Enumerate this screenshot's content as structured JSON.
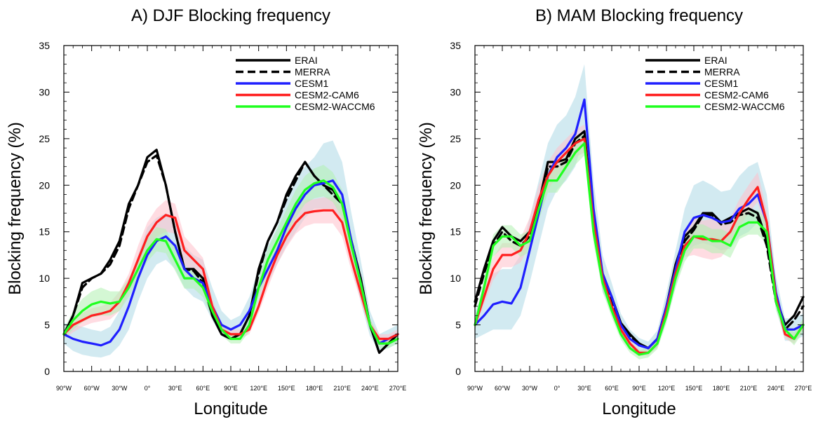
{
  "colors": {
    "erai": "#000000",
    "merra": "#000000",
    "cesm1": "#1f1fff",
    "cam6": "#ff1f1f",
    "waccm6": "#1fff1f",
    "cesm1_band": "#add8e6",
    "cam6_band": "#ffc0cb",
    "waccm6_band": "#b0f0b0"
  },
  "chart_data": [
    {
      "type": "line",
      "title": "A) DJF Blocking frequency",
      "xlabel": "Longitude",
      "ylabel": "Blocking frequency (%)",
      "xlim": [
        -90,
        270
      ],
      "ylim": [
        0,
        35
      ],
      "xticks": [
        -90,
        -60,
        -30,
        0,
        30,
        60,
        90,
        120,
        150,
        180,
        210,
        240,
        270
      ],
      "xtick_labels": [
        "90°W",
        "60°W",
        "30°W",
        "0°",
        "30°E",
        "60°E",
        "90°E",
        "120°E",
        "150°E",
        "180°E",
        "210°E",
        "240°E",
        "270°E"
      ],
      "yticks": [
        0,
        5,
        10,
        15,
        20,
        25,
        30,
        35
      ],
      "ytick_labels": [
        "0",
        "5",
        "10",
        "15",
        "20",
        "25",
        "30",
        "35"
      ],
      "legend": "top-right",
      "x": [
        -90,
        -80,
        -70,
        -60,
        -50,
        -40,
        -30,
        -20,
        -10,
        0,
        10,
        20,
        30,
        40,
        50,
        60,
        70,
        80,
        90,
        100,
        110,
        120,
        130,
        140,
        150,
        160,
        170,
        180,
        190,
        200,
        210,
        220,
        230,
        240,
        250,
        260,
        270
      ],
      "series": [
        {
          "name": "ERAI",
          "key": "erai",
          "dash": "solid",
          "values": [
            4,
            6,
            9.5,
            10,
            10.5,
            12,
            14,
            18,
            20,
            23,
            23.8,
            20,
            15,
            11,
            11,
            10,
            6,
            4,
            3.5,
            4,
            6,
            11,
            14,
            16,
            19,
            21,
            22.5,
            21,
            20,
            19.5,
            18,
            14,
            10,
            5,
            2,
            3,
            4
          ]
        },
        {
          "name": "MERRA",
          "key": "merra",
          "dash": "dashed",
          "values": [
            4,
            6,
            9,
            10,
            10.5,
            11.5,
            13.5,
            17.5,
            20,
            22.5,
            23.2,
            20,
            15,
            11,
            10.8,
            9.5,
            6,
            4,
            3.5,
            4,
            6,
            10.5,
            14,
            16,
            18.5,
            20.5,
            22.5,
            21,
            20,
            19,
            18,
            14,
            10,
            5,
            2,
            3,
            4
          ]
        },
        {
          "name": "CESM1",
          "key": "cesm1",
          "dash": "solid",
          "values": [
            4,
            3.5,
            3.2,
            3,
            2.8,
            3.2,
            4.5,
            7,
            10,
            12.5,
            14,
            14.5,
            13.5,
            11,
            10,
            9.5,
            7,
            5,
            4.5,
            5,
            6.5,
            9,
            11,
            13,
            15.5,
            17.5,
            19,
            20,
            20.2,
            20.5,
            19,
            14,
            9.5,
            5,
            3,
            3.5,
            4
          ]
        },
        {
          "name": "CESM2-CAM6",
          "key": "cam6",
          "dash": "solid",
          "values": [
            4,
            5,
            5.5,
            6,
            6.2,
            6.5,
            7.5,
            9.5,
            12,
            14.5,
            16,
            16.8,
            16.5,
            13,
            12,
            11,
            7,
            4.5,
            4,
            4,
            4.5,
            7,
            10,
            12.5,
            14.5,
            16,
            17,
            17.2,
            17.3,
            17.3,
            16,
            12,
            8.5,
            5,
            3.5,
            3.5,
            4
          ]
        },
        {
          "name": "CESM2-WACCM6",
          "key": "waccm6",
          "dash": "solid",
          "values": [
            4,
            5.5,
            6.5,
            7.2,
            7.5,
            7.3,
            7.5,
            9,
            11,
            13,
            14.2,
            14,
            12,
            10,
            10,
            9,
            6.5,
            4.5,
            3.5,
            3.5,
            5,
            9,
            12,
            14,
            16,
            18,
            19.5,
            20.2,
            20.5,
            19.8,
            18,
            13.5,
            9.5,
            5,
            3,
            3,
            3.5
          ]
        }
      ],
      "bands": [
        {
          "key": "cesm1",
          "lower": [
            3,
            2.2,
            1.8,
            1.6,
            1.5,
            1.8,
            2.8,
            4.5,
            7.5,
            10,
            11.5,
            12,
            11,
            9,
            8,
            7.5,
            5.5,
            3.8,
            3.5,
            4,
            5.2,
            7.5,
            9.5,
            11.5,
            13.5,
            15,
            16.5,
            17.5,
            17.5,
            17.5,
            16,
            11.5,
            7.5,
            3.8,
            2.2,
            2.5,
            3
          ],
          "upper": [
            5.2,
            5,
            4.8,
            4.5,
            4.3,
            4.8,
            6.5,
            9.5,
            12.5,
            15.5,
            16.5,
            17,
            16,
            13.5,
            12.5,
            12,
            9,
            6.5,
            5.5,
            6,
            8,
            11,
            13.5,
            15.5,
            18.5,
            20.5,
            22,
            23,
            24.5,
            24.8,
            22.5,
            17,
            12,
            6.5,
            4,
            4.5,
            5
          ]
        },
        {
          "key": "cam6",
          "lower": [
            3.5,
            4.2,
            4.8,
            5.2,
            5.4,
            5.6,
            6.5,
            8.5,
            10.5,
            13,
            14.5,
            15,
            14.8,
            11.5,
            10.5,
            9.8,
            6.2,
            4,
            3.5,
            3.5,
            4,
            6.3,
            9,
            11.5,
            13.3,
            14.8,
            15.6,
            15.9,
            15.9,
            15.9,
            14.5,
            10.8,
            7.6,
            4.4,
            3,
            3,
            3.5
          ],
          "upper": [
            4.5,
            5.8,
            6.3,
            6.8,
            7,
            7.4,
            8.6,
            10.5,
            13.5,
            16,
            17.5,
            18.4,
            18,
            14.5,
            13.4,
            12.2,
            7.8,
            5,
            4.5,
            4.5,
            5,
            7.7,
            11,
            13.5,
            15.7,
            17.2,
            18.4,
            18.5,
            18.7,
            18.7,
            17.5,
            13.2,
            9.4,
            5.6,
            4,
            4,
            4.5
          ]
        },
        {
          "key": "waccm6",
          "lower": [
            3.5,
            4.5,
            5.3,
            5.8,
            6,
            6,
            6.5,
            8,
            10,
            11.8,
            12.9,
            12.7,
            10.8,
            8.9,
            8.9,
            8,
            5.7,
            3.9,
            3,
            3,
            4.3,
            8,
            10.8,
            12.7,
            14.6,
            16.5,
            18,
            18.6,
            18.8,
            18.2,
            16.5,
            12.2,
            8.4,
            4.3,
            2.5,
            2.5,
            3
          ],
          "upper": [
            4.5,
            6.5,
            7.8,
            8.6,
            9,
            8.6,
            8.6,
            10,
            12,
            14.2,
            15.5,
            15.3,
            13.2,
            11.1,
            11.1,
            10,
            7.3,
            5.1,
            4,
            4,
            5.7,
            10,
            13.2,
            15.3,
            17.4,
            19.5,
            21,
            21.8,
            22.2,
            21.4,
            19.5,
            14.8,
            10.6,
            5.7,
            3.5,
            3.5,
            4
          ]
        }
      ]
    },
    {
      "type": "line",
      "title": "B) MAM Blocking frequency",
      "xlabel": "Longitude",
      "ylabel": "Blocking frequency (%)",
      "xlim": [
        -90,
        270
      ],
      "ylim": [
        0,
        35
      ],
      "xticks": [
        -90,
        -60,
        -30,
        0,
        30,
        60,
        90,
        120,
        150,
        180,
        210,
        240,
        270
      ],
      "xtick_labels": [
        "90°W",
        "60°W",
        "30°W",
        "0°",
        "30°E",
        "60°E",
        "90°E",
        "120°E",
        "150°E",
        "180°E",
        "210°E",
        "240°E",
        "270°E"
      ],
      "yticks": [
        0,
        5,
        10,
        15,
        20,
        25,
        30,
        35
      ],
      "ytick_labels": [
        "0",
        "5",
        "10",
        "15",
        "20",
        "25",
        "30",
        "35"
      ],
      "legend": "top-right",
      "x": [
        -90,
        -80,
        -70,
        -60,
        -50,
        -40,
        -30,
        -20,
        -10,
        0,
        10,
        20,
        30,
        40,
        50,
        60,
        70,
        80,
        90,
        100,
        110,
        120,
        130,
        140,
        150,
        160,
        170,
        180,
        190,
        200,
        210,
        220,
        230,
        240,
        250,
        260,
        270
      ],
      "series": [
        {
          "name": "ERAI",
          "key": "erai",
          "dash": "solid",
          "values": [
            7.5,
            11,
            14,
            15.5,
            14.5,
            14,
            15,
            18,
            22.5,
            22.5,
            22.8,
            25,
            25.8,
            16,
            10.5,
            8,
            5.2,
            4,
            3,
            2.5,
            3.5,
            7,
            11.5,
            14.5,
            15.5,
            17,
            17,
            16,
            16.5,
            17,
            17.5,
            17,
            14,
            8,
            5,
            6,
            8
          ]
        },
        {
          "name": "MERRA",
          "key": "merra",
          "dash": "dashed",
          "values": [
            7,
            10.5,
            13.5,
            15,
            14,
            13.5,
            14.5,
            17,
            22,
            22,
            22.5,
            24.5,
            25.3,
            15.5,
            10,
            7.5,
            5,
            3.8,
            3,
            2.5,
            3.5,
            7,
            11,
            14,
            15.2,
            16.8,
            16.8,
            15.8,
            16,
            16.8,
            17,
            16.5,
            13.5,
            7.5,
            4.5,
            5.5,
            7
          ]
        },
        {
          "name": "CESM1",
          "key": "cesm1",
          "dash": "solid",
          "values": [
            5,
            6,
            7.2,
            7.5,
            7.3,
            9,
            13,
            17,
            21,
            23,
            24,
            25.5,
            29.2,
            17.5,
            10.5,
            8,
            5,
            3.5,
            2.8,
            2.5,
            3.5,
            7,
            11,
            15,
            16.5,
            16.8,
            16.5,
            16,
            16.2,
            17.5,
            18,
            19,
            16,
            8.5,
            4.5,
            4.5,
            5
          ]
        },
        {
          "name": "CESM2-CAM6",
          "key": "cam6",
          "dash": "solid",
          "values": [
            5,
            8,
            11,
            12.5,
            12.5,
            13,
            15,
            18.5,
            21,
            22.5,
            23.5,
            24.5,
            25,
            16,
            10,
            7,
            4.5,
            3,
            2,
            2,
            3,
            6.5,
            10.5,
            13.5,
            14.5,
            14.2,
            14.2,
            14,
            15,
            17,
            18.5,
            19.8,
            16,
            8,
            4,
            3.5,
            5
          ]
        },
        {
          "name": "CESM2-WACCM6",
          "key": "waccm6",
          "dash": "solid",
          "values": [
            5,
            9,
            13.5,
            14.5,
            14.5,
            13.5,
            14,
            17.5,
            20.5,
            20.5,
            22,
            23.5,
            24.5,
            15,
            9.5,
            6.5,
            4,
            2.5,
            1.8,
            2,
            3,
            6,
            10,
            13,
            14.5,
            14.5,
            14,
            14,
            13.5,
            15.5,
            16,
            16,
            15,
            7.5,
            4.5,
            3.5,
            5
          ]
        }
      ],
      "bands": [
        {
          "key": "cesm1",
          "lower": [
            3.5,
            4,
            4.5,
            4.5,
            4.5,
            6,
            9.5,
            13.5,
            17.5,
            19.5,
            20.5,
            22,
            25.5,
            14.5,
            8.5,
            6.5,
            3.8,
            2.5,
            2,
            1.8,
            2.6,
            5.5,
            9,
            12.5,
            13.5,
            13.8,
            13.5,
            13,
            13.2,
            14.5,
            15,
            16,
            13.3,
            6.8,
            3.3,
            3.3,
            3.8
          ],
          "upper": [
            6.5,
            8.5,
            10.5,
            11,
            11,
            12.5,
            16.5,
            20.5,
            24.5,
            26.5,
            27.5,
            29.5,
            33,
            20.5,
            12.5,
            9.5,
            6.2,
            4.5,
            3.6,
            3.2,
            4.4,
            8.5,
            13,
            17.5,
            20,
            20.5,
            20,
            19.3,
            19.5,
            21,
            22,
            22.5,
            19,
            10.2,
            5.7,
            5.7,
            6.2
          ]
        },
        {
          "key": "cam6",
          "lower": [
            4.5,
            7.2,
            9.8,
            11.2,
            11.2,
            11.7,
            13.5,
            17,
            19.5,
            21,
            22,
            23,
            23.5,
            14.8,
            9.2,
            6.4,
            4,
            2.6,
            1.7,
            1.7,
            2.6,
            5.8,
            9.5,
            12.3,
            12.5,
            12.2,
            12,
            12.3,
            13.5,
            15.5,
            17,
            18.2,
            14.7,
            7.3,
            3.5,
            3,
            4.5
          ],
          "upper": [
            5.5,
            8.8,
            12.2,
            13.8,
            13.8,
            14.3,
            16.5,
            20,
            22.5,
            24,
            25,
            26,
            26.5,
            17.2,
            10.8,
            7.6,
            5,
            3.4,
            2.3,
            2.3,
            3.4,
            7.2,
            11.5,
            14.7,
            16.5,
            16.2,
            16.4,
            15.7,
            16.5,
            18.5,
            20,
            21.4,
            17.3,
            8.7,
            4.5,
            4,
            5.5
          ]
        },
        {
          "key": "waccm6",
          "lower": [
            4.3,
            8,
            12.3,
            13.3,
            13.3,
            12.3,
            12.8,
            16.2,
            19.2,
            19.2,
            20.7,
            22.2,
            23.2,
            13.8,
            8.6,
            5.8,
            3.4,
            2,
            1.3,
            1.5,
            2.4,
            5.2,
            9,
            11.8,
            13.2,
            13.2,
            12.7,
            12.7,
            12.2,
            14.2,
            14.7,
            14.7,
            13.7,
            6.6,
            3.8,
            2.8,
            4.3
          ],
          "upper": [
            5.7,
            10,
            14.7,
            15.7,
            15.7,
            14.7,
            15.2,
            18.8,
            21.8,
            21.8,
            23.3,
            24.8,
            25.8,
            16.2,
            10.4,
            7.2,
            4.6,
            3,
            2.3,
            2.5,
            3.6,
            6.8,
            11,
            14.2,
            15.8,
            15.8,
            15.3,
            15.3,
            14.8,
            16.8,
            17.3,
            17.3,
            16.3,
            8.4,
            5.2,
            4.2,
            5.7
          ]
        }
      ]
    }
  ]
}
